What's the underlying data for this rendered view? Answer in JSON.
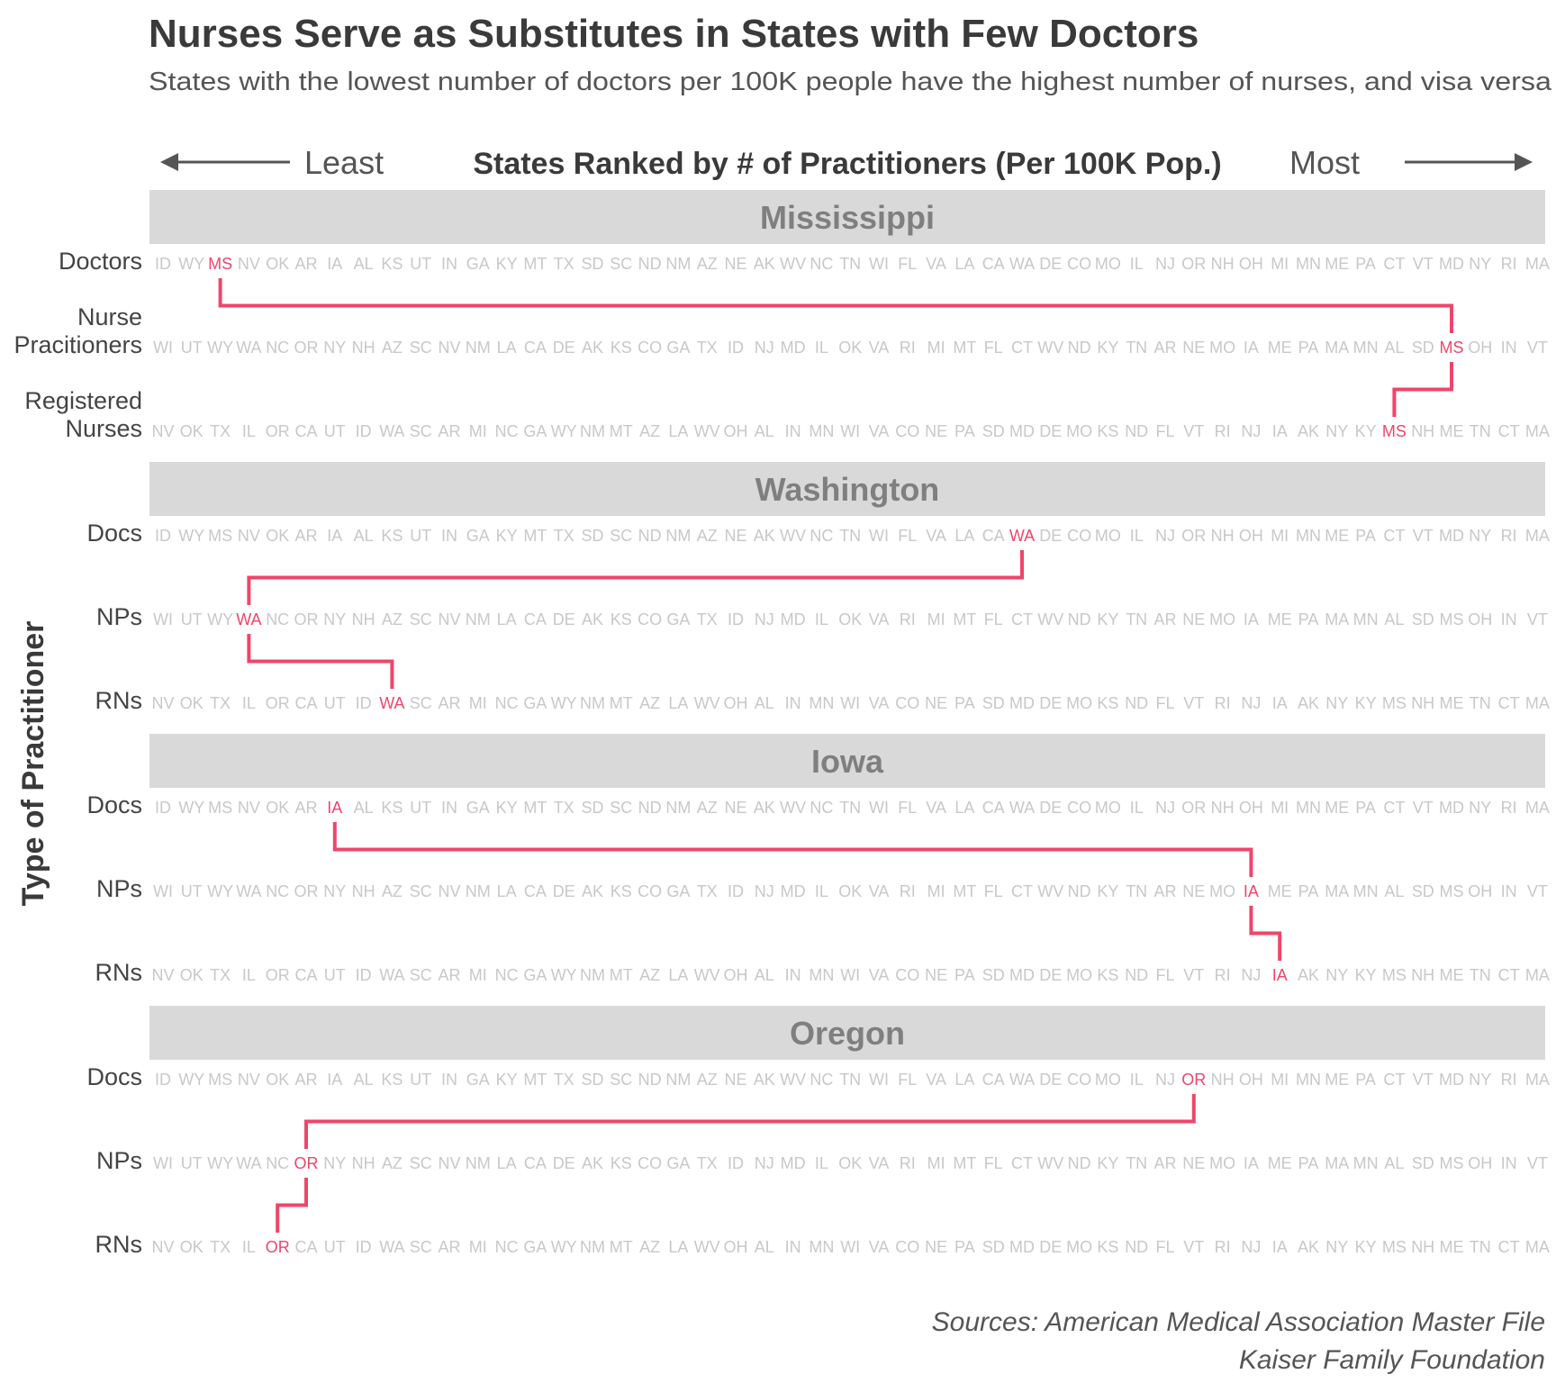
{
  "chart_data": {
    "type": "bump",
    "title": "Nurses Serve as Substitutes in States with Few Doctors",
    "subtitle": "States with the lowest number of doctors per 100K people have the highest number of nurses, and visa versa",
    "xlabel": "States Ranked by # of Practitioners (Per 100K Pop.)",
    "x_left_label": "Least",
    "x_right_label": "Most",
    "ylabel": "Type of Practitioner",
    "rankings": {
      "doctors": [
        "ID",
        "WY",
        "MS",
        "NV",
        "OK",
        "AR",
        "IA",
        "AL",
        "KS",
        "UT",
        "IN",
        "GA",
        "KY",
        "MT",
        "TX",
        "SD",
        "SC",
        "ND",
        "NM",
        "AZ",
        "NE",
        "AK",
        "WV",
        "NC",
        "TN",
        "WI",
        "FL",
        "VA",
        "LA",
        "CA",
        "WA",
        "DE",
        "CO",
        "MO",
        "IL",
        "NJ",
        "OR",
        "NH",
        "OH",
        "MI",
        "MN",
        "ME",
        "PA",
        "CT",
        "VT",
        "MD",
        "NY",
        "RI",
        "MA"
      ],
      "nps": [
        "WI",
        "UT",
        "WY",
        "WA",
        "NC",
        "OR",
        "NY",
        "NH",
        "AZ",
        "SC",
        "NV",
        "NM",
        "LA",
        "CA",
        "DE",
        "AK",
        "KS",
        "CO",
        "GA",
        "TX",
        "ID",
        "NJ",
        "MD",
        "IL",
        "OK",
        "VA",
        "RI",
        "MI",
        "MT",
        "FL",
        "CT",
        "WV",
        "ND",
        "KY",
        "TN",
        "AR",
        "NE",
        "MO",
        "IA",
        "ME",
        "PA",
        "MA",
        "MN",
        "AL",
        "SD",
        "MS",
        "OH",
        "IN",
        "VT"
      ],
      "rns": [
        "NV",
        "OK",
        "TX",
        "IL",
        "OR",
        "CA",
        "UT",
        "ID",
        "WA",
        "SC",
        "AR",
        "MI",
        "NC",
        "GA",
        "WY",
        "NM",
        "MT",
        "AZ",
        "LA",
        "WV",
        "OH",
        "AL",
        "IN",
        "MN",
        "WI",
        "VA",
        "CO",
        "NE",
        "PA",
        "SD",
        "MD",
        "DE",
        "MO",
        "KS",
        "ND",
        "FL",
        "VT",
        "RI",
        "NJ",
        "IA",
        "AK",
        "NY",
        "KY",
        "MS",
        "NH",
        "ME",
        "TN",
        "CT",
        "MA"
      ]
    },
    "panels": [
      {
        "state": "Mississippi",
        "code": "MS",
        "row_labels": [
          "Doctors",
          "Nurse\nPracitioners",
          "Registered\nNurses"
        ]
      },
      {
        "state": "Washington",
        "code": "WA",
        "row_labels": [
          "Docs",
          "NPs",
          "RNs"
        ]
      },
      {
        "state": "Iowa",
        "code": "IA",
        "row_labels": [
          "Docs",
          "NPs",
          "RNs"
        ]
      },
      {
        "state": "Oregon",
        "code": "OR",
        "row_labels": [
          "Docs",
          "NPs",
          "RNs"
        ]
      }
    ],
    "highlight_color": "#f0456a",
    "tick_color": "#c8c8c8",
    "strip_color": "#d9d9d9",
    "sources": [
      "Sources: American Medical Association Master File",
      "Kaiser Family Foundation"
    ]
  }
}
